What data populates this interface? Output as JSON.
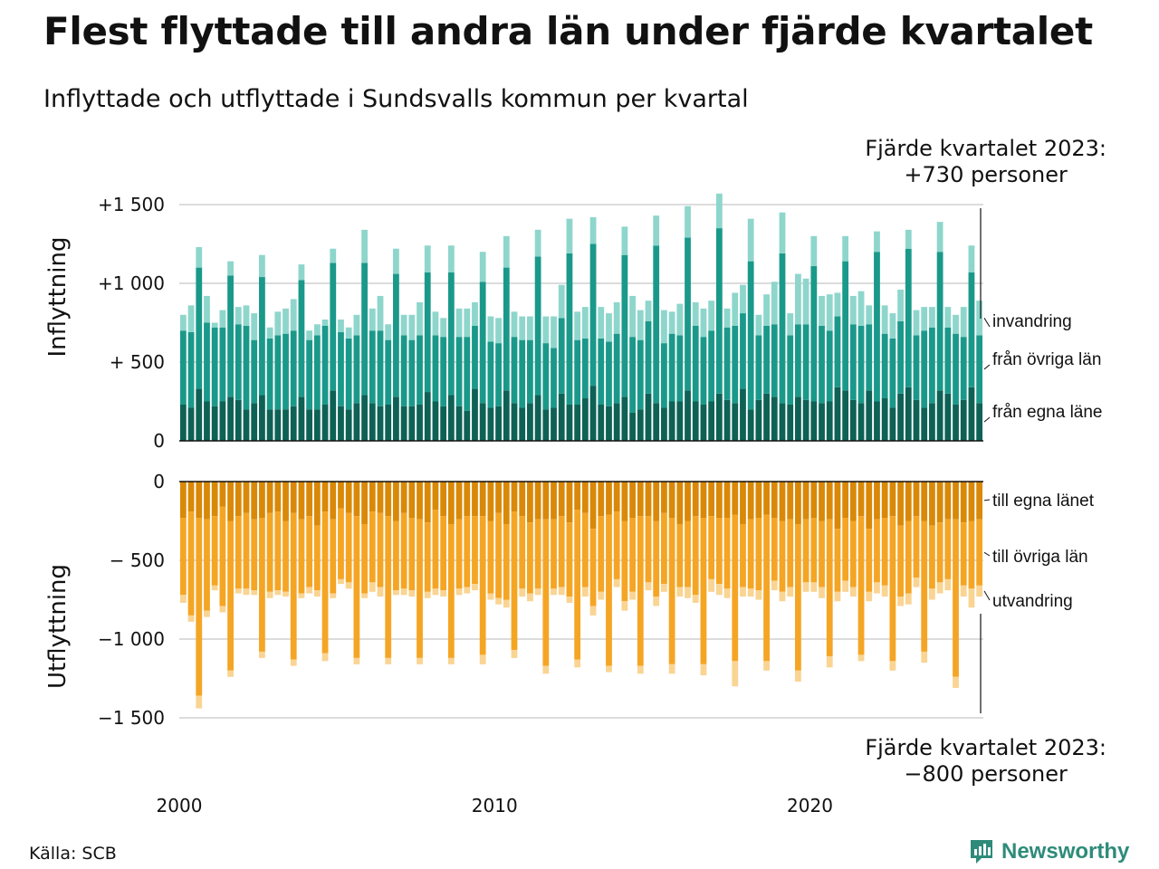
{
  "title": "Flest flyttade till andra län under fjärde kvartalet",
  "subtitle": "Inflyttade och utflyttade i Sundsvalls kommun per kvartal",
  "note_top": {
    "line1": "Fjärde kvartalet 2023:",
    "line2": "+730 personer"
  },
  "note_bottom": {
    "line1": "Fjärde kvartalet 2023:",
    "line2": "−800 personer"
  },
  "source": "Källa: SCB",
  "brand": "Newsworthy",
  "colors": {
    "in_egna": "#0e6155",
    "in_ovriga": "#1a998a",
    "in_invandring": "#8ed6cc",
    "ut_egna": "#d98907",
    "ut_ovriga": "#f5a524",
    "ut_utvandring": "#f9d493",
    "grid": "#dcdcdc",
    "brand": "#2e8b7a"
  },
  "chart_data": [
    {
      "type": "bar",
      "stacked": true,
      "ylabel": "Inflyttning",
      "ylim": [
        0,
        1500
      ],
      "y_ticks": [
        0,
        500,
        1000,
        1500
      ],
      "y_tick_labels": [
        "0",
        "+  500",
        "+1 000",
        "+1 500"
      ],
      "x_start_quarter": "2000 Q1",
      "x_tick_labels": [
        "2000",
        "2010",
        "2020"
      ],
      "series": [
        {
          "name": "från egna länet",
          "label": "från egna läne",
          "values": [
            230,
            210,
            330,
            250,
            220,
            250,
            280,
            260,
            200,
            240,
            290,
            200,
            200,
            200,
            220,
            280,
            200,
            200,
            230,
            320,
            220,
            200,
            240,
            290,
            240,
            220,
            230,
            280,
            220,
            220,
            230,
            310,
            250,
            220,
            290,
            220,
            190,
            330,
            240,
            210,
            220,
            320,
            240,
            210,
            240,
            290,
            200,
            210,
            300,
            230,
            230,
            270,
            350,
            230,
            220,
            240,
            280,
            180,
            200,
            300,
            240,
            210,
            250,
            250,
            320,
            250,
            230,
            250,
            300,
            260,
            240,
            330,
            200,
            260,
            300,
            280,
            240,
            230,
            280,
            260,
            250,
            240,
            250,
            340,
            320,
            260,
            240,
            320,
            250,
            270,
            210,
            300,
            340,
            260,
            210,
            240,
            320,
            300,
            230,
            260,
            340,
            240
          ]
        },
        {
          "name": "från övriga län",
          "label": "från övriga län",
          "values": [
            470,
            480,
            770,
            500,
            500,
            470,
            770,
            480,
            530,
            400,
            750,
            450,
            470,
            480,
            480,
            740,
            440,
            470,
            500,
            810,
            470,
            450,
            430,
            840,
            460,
            480,
            410,
            780,
            450,
            420,
            440,
            760,
            420,
            440,
            780,
            440,
            470,
            400,
            770,
            420,
            400,
            780,
            420,
            430,
            400,
            880,
            420,
            380,
            480,
            960,
            410,
            380,
            900,
            420,
            410,
            440,
            900,
            480,
            440,
            460,
            1000,
            410,
            430,
            420,
            970,
            480,
            430,
            450,
            1050,
            460,
            490,
            480,
            940,
            410,
            430,
            460,
            950,
            440,
            460,
            480,
            860,
            490,
            450,
            450,
            820,
            480,
            490,
            420,
            950,
            410,
            440,
            460,
            880,
            410,
            490,
            480,
            880,
            420,
            450,
            400,
            730,
            430
          ]
        },
        {
          "name": "invandring",
          "label": "invandring",
          "values": [
            100,
            170,
            130,
            170,
            30,
            110,
            90,
            110,
            130,
            170,
            140,
            70,
            150,
            160,
            200,
            100,
            60,
            70,
            40,
            90,
            80,
            70,
            130,
            210,
            140,
            220,
            100,
            160,
            130,
            160,
            210,
            170,
            150,
            120,
            170,
            180,
            180,
            150,
            190,
            160,
            160,
            200,
            160,
            150,
            150,
            170,
            170,
            200,
            210,
            220,
            180,
            200,
            170,
            200,
            180,
            200,
            180,
            260,
            190,
            130,
            190,
            210,
            140,
            200,
            200,
            150,
            180,
            190,
            220,
            120,
            210,
            180,
            270,
            130,
            200,
            270,
            260,
            140,
            320,
            290,
            190,
            190,
            230,
            150,
            160,
            180,
            220,
            120,
            130,
            180,
            160,
            200,
            120,
            160,
            150,
            130,
            190,
            130,
            120,
            190,
            170,
            220
          ]
        }
      ]
    },
    {
      "type": "bar",
      "stacked": true,
      "ylabel": "Utflyttning",
      "ylim": [
        -1500,
        0
      ],
      "y_ticks": [
        0,
        -500,
        -1000,
        -1500
      ],
      "y_tick_labels": [
        "0",
        "−  500",
        "−1 000",
        "−1 500"
      ],
      "series": [
        {
          "name": "till egna länet",
          "label": "till egna länet",
          "values": [
            -230,
            -190,
            -230,
            -240,
            -220,
            -160,
            -250,
            -220,
            -200,
            -240,
            -230,
            -200,
            -190,
            -250,
            -200,
            -240,
            -220,
            -280,
            -190,
            -240,
            -170,
            -200,
            -220,
            -270,
            -190,
            -200,
            -220,
            -250,
            -200,
            -230,
            -240,
            -260,
            -180,
            -220,
            -270,
            -240,
            -220,
            -220,
            -220,
            -250,
            -200,
            -270,
            -190,
            -220,
            -260,
            -240,
            -240,
            -240,
            -220,
            -260,
            -180,
            -200,
            -300,
            -220,
            -210,
            -190,
            -250,
            -230,
            -220,
            -220,
            -250,
            -200,
            -230,
            -270,
            -250,
            -220,
            -230,
            -220,
            -230,
            -230,
            -210,
            -270,
            -240,
            -230,
            -210,
            -230,
            -250,
            -240,
            -270,
            -240,
            -230,
            -250,
            -240,
            -300,
            -230,
            -250,
            -220,
            -300,
            -240,
            -230,
            -220,
            -280,
            -250,
            -220,
            -250,
            -280,
            -260,
            -240,
            -240,
            -260,
            -250,
            -240
          ]
        },
        {
          "name": "till övriga län",
          "label": "till övriga län",
          "values": [
            -490,
            -660,
            -1130,
            -580,
            -440,
            -630,
            -950,
            -460,
            -480,
            -450,
            -850,
            -500,
            -500,
            -450,
            -930,
            -470,
            -450,
            -410,
            -900,
            -470,
            -450,
            -440,
            -900,
            -440,
            -450,
            -470,
            -900,
            -440,
            -480,
            -460,
            -880,
            -440,
            -500,
            -470,
            -850,
            -440,
            -450,
            -430,
            -880,
            -460,
            -540,
            -480,
            -880,
            -460,
            -450,
            -440,
            -930,
            -440,
            -450,
            -470,
            -950,
            -470,
            -490,
            -480,
            -960,
            -430,
            -510,
            -470,
            -950,
            -420,
            -480,
            -450,
            -930,
            -400,
            -420,
            -500,
            -930,
            -400,
            -420,
            -450,
            -930,
            -400,
            -440,
            -460,
            -930,
            -400,
            -450,
            -430,
            -930,
            -400,
            -410,
            -420,
            -870,
            -400,
            -400,
            -420,
            -880,
            -400,
            -400,
            -430,
            -920,
            -450,
            -460,
            -390,
            -830,
            -400,
            -380,
            -380,
            -1000,
            -400,
            -430,
            -420
          ]
        },
        {
          "name": "utvandring",
          "label": "utvandring",
          "values": [
            -50,
            -40,
            -80,
            -40,
            -30,
            -40,
            -40,
            -30,
            -40,
            -30,
            -40,
            -40,
            -30,
            -30,
            -40,
            -30,
            -40,
            -40,
            -50,
            -30,
            -30,
            -40,
            -40,
            -30,
            -60,
            -60,
            -40,
            -30,
            -40,
            -40,
            -40,
            -40,
            -40,
            -40,
            -40,
            -40,
            -40,
            -40,
            -60,
            -40,
            -40,
            -50,
            -50,
            -50,
            -50,
            -40,
            -50,
            -40,
            -50,
            -40,
            -50,
            -60,
            -60,
            -50,
            -40,
            -50,
            -60,
            -50,
            -50,
            -50,
            -60,
            -50,
            -60,
            -60,
            -70,
            -50,
            -70,
            -80,
            -70,
            -60,
            -160,
            -60,
            -50,
            -60,
            -60,
            -60,
            -60,
            -60,
            -70,
            -60,
            -60,
            -70,
            -70,
            -60,
            -70,
            -60,
            -40,
            -60,
            -70,
            -70,
            -60,
            -60,
            -70,
            -60,
            -70,
            -70,
            -70,
            -70,
            -70,
            -70,
            -120,
            -70
          ]
        }
      ]
    }
  ]
}
